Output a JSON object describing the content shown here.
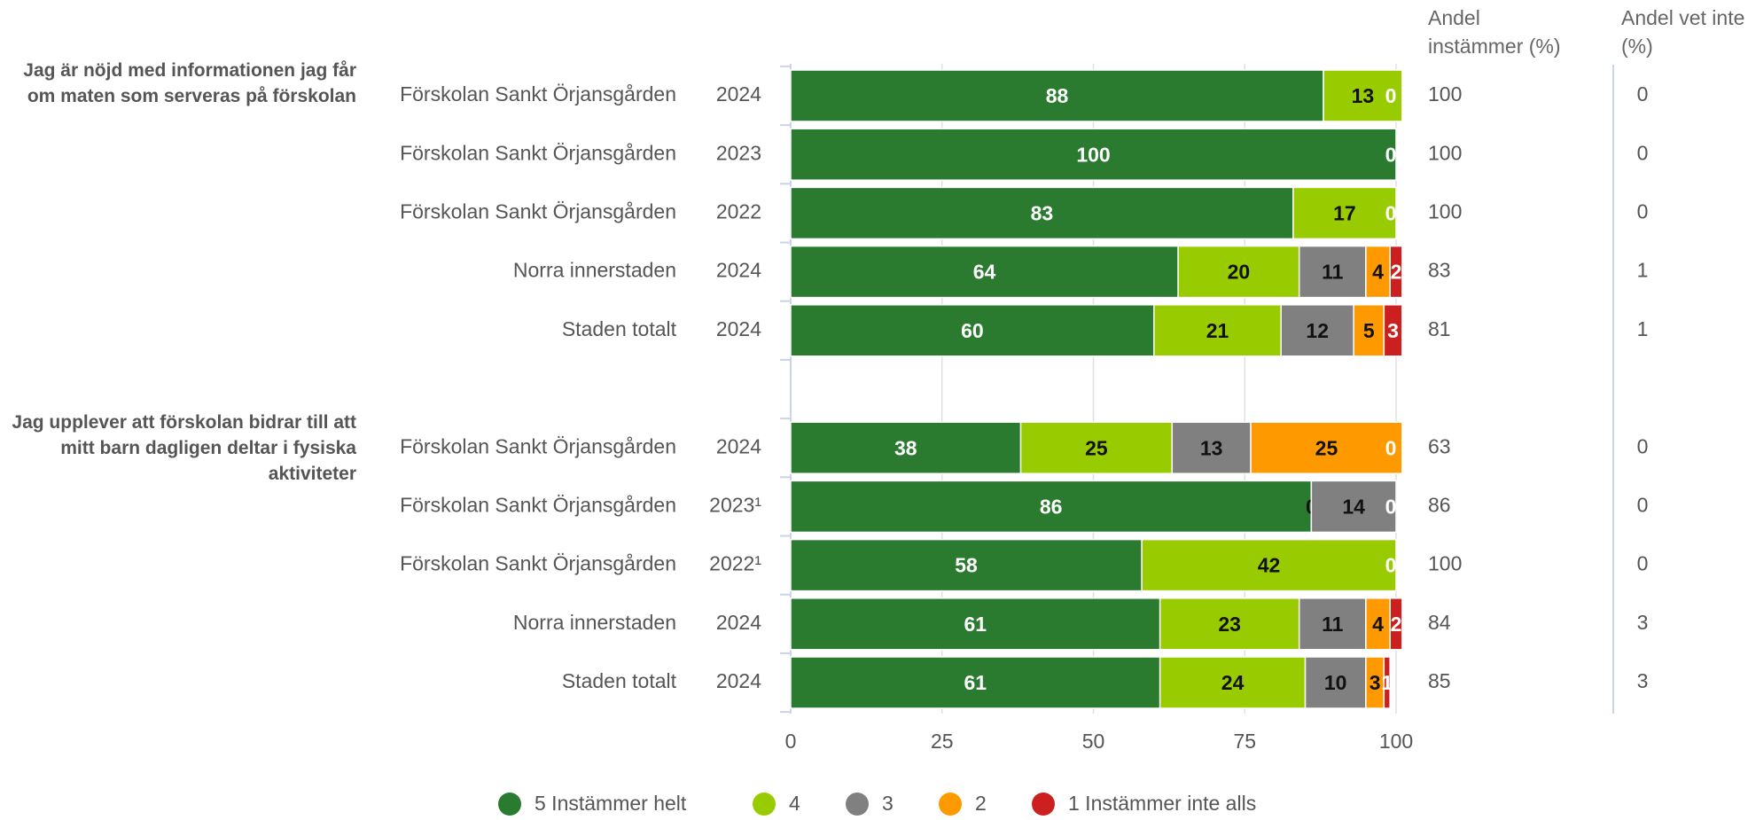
{
  "chart_data": {
    "type": "bar",
    "orientation": "horizontal",
    "stacked": true,
    "groups": [
      "Jag är nöjd med informationen jag får om maten som serveras på förskolan",
      "Jag upplever att förskolan bidrar till att mitt barn dagligen deltar i fysiska aktiviteter"
    ],
    "categories": [
      "Förskolan Sankt Örjansgården",
      "Förskolan Sankt Örjansgården",
      "Förskolan Sankt Örjansgården",
      "Norra innerstaden",
      "Staden totalt",
      "Förskolan Sankt Örjansgården",
      "Förskolan Sankt Örjansgården",
      "Förskolan Sankt Örjansgården",
      "Norra innerstaden",
      "Staden totalt"
    ],
    "years": [
      "2024",
      "2023",
      "2022",
      "2024",
      "2024",
      "2024",
      "2023¹",
      "2022¹",
      "2024",
      "2024"
    ],
    "series": [
      {
        "name": "5 Instämmer helt",
        "color": "#2a7a2f",
        "label_color": "#ffffff",
        "values": [
          88,
          100,
          83,
          64,
          60,
          38,
          86,
          58,
          61,
          61
        ]
      },
      {
        "name": "4",
        "color": "#99cc00",
        "label_color": "#111111",
        "values": [
          13,
          null,
          17,
          20,
          21,
          25,
          0,
          42,
          23,
          24
        ]
      },
      {
        "name": "3",
        "color": "#808080",
        "label_color": "#111111",
        "values": [
          null,
          null,
          null,
          11,
          12,
          13,
          14,
          null,
          11,
          10
        ]
      },
      {
        "name": "2",
        "color": "#ff9900",
        "label_color": "#111111",
        "values": [
          null,
          null,
          null,
          4,
          5,
          25,
          null,
          null,
          4,
          3
        ]
      },
      {
        "name": "1 Instämmer inte alls",
        "color": "#cc1f1f",
        "label_color": "#ffffff",
        "values": [
          0,
          0,
          0,
          2,
          3,
          0,
          0,
          0,
          2,
          1
        ]
      }
    ],
    "columns": [
      {
        "title": "Andel instämmer (%)",
        "values": [
          100,
          100,
          100,
          83,
          81,
          63,
          86,
          100,
          84,
          85
        ]
      },
      {
        "title": "Andel vet inte (%)",
        "values": [
          0,
          0,
          0,
          1,
          1,
          0,
          0,
          0,
          3,
          3
        ]
      }
    ],
    "xlim": [
      0,
      100
    ],
    "xticks": [
      0,
      25,
      50,
      75,
      100
    ],
    "grid": true,
    "legend": "bottom"
  }
}
